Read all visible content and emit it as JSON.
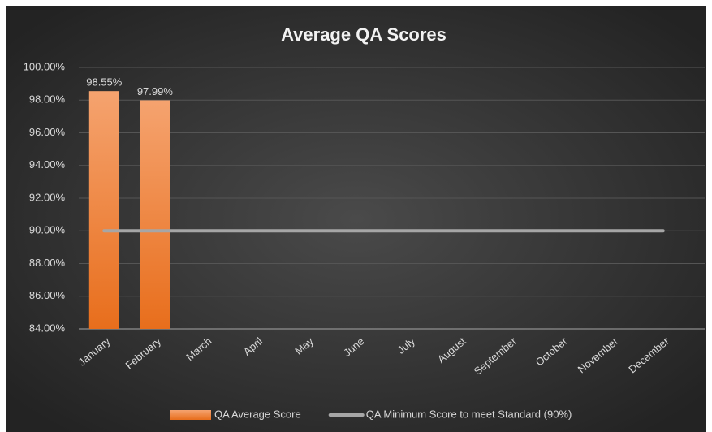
{
  "chart_data": {
    "type": "bar",
    "title": "Average QA Scores",
    "categories": [
      "January",
      "February",
      "March",
      "April",
      "May",
      "June",
      "July",
      "August",
      "September",
      "October",
      "November",
      "December"
    ],
    "series": [
      {
        "name": "QA Average Score",
        "type": "bar",
        "color": "#ed7d31",
        "values": [
          98.55,
          97.99,
          null,
          null,
          null,
          null,
          null,
          null,
          null,
          null,
          null,
          null
        ],
        "value_labels": [
          "98.55%",
          "97.99%",
          null,
          null,
          null,
          null,
          null,
          null,
          null,
          null,
          null,
          null
        ]
      },
      {
        "name": "QA Minimum Score to meet Standard (90%)",
        "type": "line",
        "color": "#a6a6a6",
        "values": [
          90,
          90,
          90,
          90,
          90,
          90,
          90,
          90,
          90,
          90,
          90,
          90
        ]
      }
    ],
    "ylim": [
      84,
      100
    ],
    "yticks": [
      {
        "value": 84,
        "label": "84.00%"
      },
      {
        "value": 86,
        "label": "86.00%"
      },
      {
        "value": 88,
        "label": "88.00%"
      },
      {
        "value": 90,
        "label": "90.00%"
      },
      {
        "value": 92,
        "label": "92.00%"
      },
      {
        "value": 94,
        "label": "94.00%"
      },
      {
        "value": 96,
        "label": "96.00%"
      },
      {
        "value": 98,
        "label": "98.00%"
      },
      {
        "value": 100,
        "label": "100.00%"
      }
    ],
    "grid": true,
    "legend": "bottom"
  }
}
